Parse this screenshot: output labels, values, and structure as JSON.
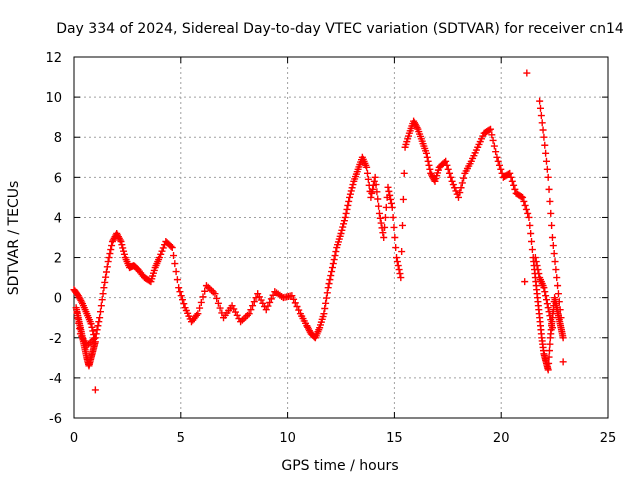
{
  "chart_data": {
    "type": "scatter",
    "title": "Day 334 of 2024, Sidereal Day-to-day VTEC variation (SDTVAR) for receiver cn14",
    "xlabel": "GPS time / hours",
    "ylabel": "SDTVAR / TECUs",
    "xlim": [
      0,
      25
    ],
    "ylim": [
      -6,
      12
    ],
    "xticks": [
      0,
      5,
      10,
      15,
      20,
      25
    ],
    "yticks": [
      -6,
      -4,
      -2,
      0,
      2,
      4,
      6,
      8,
      10,
      12
    ],
    "grid": true,
    "marker": "+",
    "series": [
      {
        "name": "SDTVAR",
        "color": "#ff0000",
        "x": [
          0.0,
          0.2,
          0.4,
          0.6,
          0.8,
          1.0,
          0.9,
          0.8,
          0.7,
          0.6,
          0.5,
          0.4,
          0.3,
          0.2,
          0.1,
          0.3,
          0.6,
          1.0,
          1.2,
          1.4,
          1.6,
          1.8,
          2.0,
          2.2,
          2.4,
          2.6,
          2.8,
          3.0,
          3.3,
          3.6,
          3.8,
          4.0,
          4.3,
          4.6,
          4.9,
          5.2,
          5.5,
          5.8,
          6.2,
          6.6,
          7.0,
          7.4,
          7.8,
          8.2,
          8.6,
          9.0,
          9.4,
          9.8,
          10.2,
          10.6,
          10.9,
          11.1,
          11.3,
          11.5,
          11.7,
          11.9,
          12.1,
          12.3,
          12.5,
          12.7,
          12.9,
          13.1,
          13.3,
          13.5,
          13.7,
          13.9,
          14.1,
          14.3,
          14.5,
          14.7,
          14.9,
          15.1,
          15.3,
          15.5,
          15.7,
          15.9,
          16.1,
          16.3,
          16.5,
          16.7,
          16.9,
          17.1,
          17.4,
          17.7,
          18.0,
          18.3,
          18.6,
          18.9,
          19.2,
          19.5,
          19.8,
          20.1,
          20.4,
          20.7,
          21.0,
          21.3,
          21.5,
          21.6,
          21.7,
          21.8,
          21.9,
          22.0,
          22.1,
          22.2,
          22.3,
          22.4,
          22.5,
          22.6,
          22.7,
          22.8,
          22.9,
          21.8,
          22.0,
          22.2,
          22.4,
          22.6,
          22.8,
          21.6,
          21.8,
          22.0,
          22.2,
          22.4
        ],
        "y": [
          0.4,
          0.1,
          -0.3,
          -0.8,
          -1.3,
          -2.2,
          -2.6,
          -3.0,
          -3.4,
          -3.0,
          -2.5,
          -2.0,
          -1.5,
          -1.0,
          -0.5,
          -1.8,
          -2.4,
          -2.0,
          -1.0,
          0.5,
          1.8,
          2.8,
          3.2,
          2.8,
          2.0,
          1.5,
          1.6,
          1.4,
          1.0,
          0.8,
          1.5,
          2.0,
          2.8,
          2.5,
          0.5,
          -0.5,
          -1.2,
          -0.8,
          0.6,
          0.2,
          -1.0,
          -0.4,
          -1.2,
          -0.8,
          0.2,
          -0.6,
          0.3,
          0.0,
          0.1,
          -0.8,
          -1.4,
          -1.8,
          -2.0,
          -1.5,
          -0.8,
          0.5,
          1.5,
          2.5,
          3.2,
          4.0,
          5.0,
          5.8,
          6.4,
          7.0,
          6.5,
          5.0,
          6.0,
          4.2,
          3.0,
          5.5,
          4.5,
          2.0,
          1.0,
          7.5,
          8.2,
          8.8,
          8.4,
          7.8,
          7.2,
          6.2,
          5.8,
          6.5,
          6.8,
          5.8,
          5.0,
          6.2,
          6.8,
          7.5,
          8.2,
          8.4,
          7.0,
          6.0,
          6.2,
          5.2,
          5.0,
          4.0,
          2.0,
          1.0,
          0.0,
          -1.0,
          -2.0,
          -2.8,
          -3.2,
          -3.6,
          -2.0,
          -1.0,
          0.0,
          -0.5,
          -1.0,
          -1.5,
          -2.0,
          9.8,
          8.0,
          6.0,
          3.0,
          1.0,
          -1.0,
          2.0,
          1.0,
          0.5,
          -0.5,
          -1.5
        ]
      }
    ],
    "isolated_points": [
      {
        "x": 21.2,
        "y": 11.2
      },
      {
        "x": 21.1,
        "y": 0.8
      },
      {
        "x": 1.0,
        "y": -4.6
      },
      {
        "x": 22.9,
        "y": -3.2
      }
    ]
  }
}
